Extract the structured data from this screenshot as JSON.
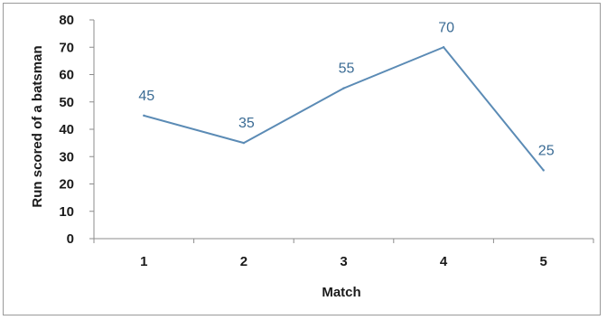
{
  "chart_data": {
    "type": "line",
    "title": "",
    "xlabel": "Match",
    "ylabel": "Run scored of a batsman",
    "categories": [
      "1",
      "2",
      "3",
      "4",
      "5"
    ],
    "series": [
      {
        "values": [
          45,
          35,
          55,
          70,
          25
        ]
      }
    ],
    "ylim": [
      0,
      80
    ],
    "yticks": [
      "0",
      "10",
      "20",
      "30",
      "40",
      "50",
      "60",
      "70",
      "80"
    ],
    "data_labels": [
      "45",
      "35",
      "55",
      "70",
      "25"
    ],
    "grid": false,
    "legend": "none",
    "colors": {
      "line": "#5b8bb5",
      "data_label": "#3a6b94",
      "axis": "#8c8c8c",
      "text": "#1a1a1a",
      "frame": "#9a9a9a"
    }
  }
}
